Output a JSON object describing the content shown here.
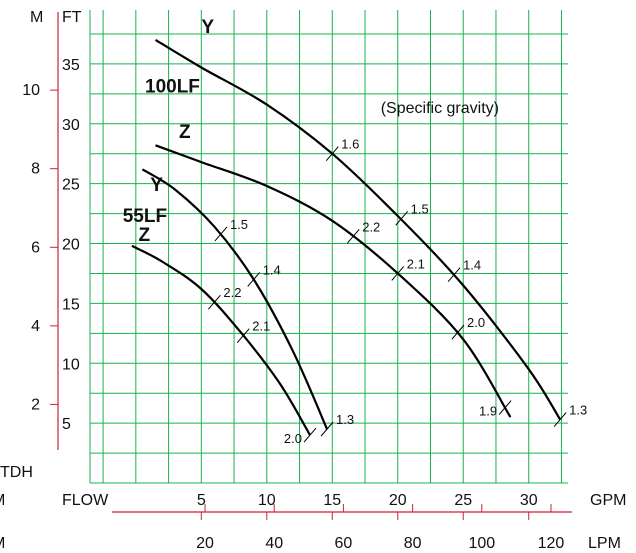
{
  "chart_data": {
    "type": "line",
    "title": "",
    "left_axes": {
      "m_unit": "M",
      "ft_unit": "FT",
      "label_below": "TDH",
      "m_ticks": [
        {
          "value": 2,
          "label": "2"
        },
        {
          "value": 4,
          "label": "4"
        },
        {
          "value": 6,
          "label": "6"
        },
        {
          "value": 8,
          "label": "8"
        },
        {
          "value": 10,
          "label": "10"
        }
      ],
      "ft_ticks": [
        {
          "value": 5,
          "label": "5"
        },
        {
          "value": 10,
          "label": "10"
        },
        {
          "value": 15,
          "label": "15"
        },
        {
          "value": 20,
          "label": "20"
        },
        {
          "value": 25,
          "label": "25"
        },
        {
          "value": 30,
          "label": "30"
        },
        {
          "value": 35,
          "label": "35"
        }
      ]
    },
    "bottom_axes": {
      "gpm_row_left": "M",
      "flow_label": "FLOW",
      "gpm_unit": "GPM",
      "gpm_ticks": [
        {
          "value": 5,
          "label": "5"
        },
        {
          "value": 10,
          "label": "10"
        },
        {
          "value": 15,
          "label": "15"
        },
        {
          "value": 20,
          "label": "20"
        },
        {
          "value": 25,
          "label": "25"
        },
        {
          "value": 30,
          "label": "30"
        }
      ],
      "lpm_row_left": "M",
      "lpm_unit": "LPM",
      "lpm_ticks": [
        {
          "value": 20,
          "label": "20"
        },
        {
          "value": 40,
          "label": "40"
        },
        {
          "value": 60,
          "label": "60"
        },
        {
          "value": 80,
          "label": "80"
        },
        {
          "value": 100,
          "label": "100"
        },
        {
          "value": 120,
          "label": "120"
        }
      ]
    },
    "xlim": [
      -3.5,
      33
    ],
    "ylim": [
      0,
      39.5
    ],
    "grid": true,
    "annotation": "(Specific gravity)",
    "series": [
      {
        "name": "Y",
        "group": "100LF",
        "x": [
          1.5,
          5,
          10,
          15,
          20,
          25,
          30,
          32.4
        ],
        "y": [
          37,
          34.7,
          31.6,
          27.5,
          22.3,
          16.5,
          9.5,
          5.3
        ]
      },
      {
        "name": "Z",
        "group": "100LF",
        "x": [
          1.5,
          5,
          10,
          15,
          20,
          25,
          28.6
        ],
        "y": [
          28.2,
          26.8,
          24.8,
          21.9,
          17.5,
          12,
          5.5
        ]
      },
      {
        "name": "Y",
        "group": "55LF",
        "x": [
          0.5,
          3,
          6,
          9,
          12,
          14.6
        ],
        "y": [
          26.2,
          24.5,
          21.4,
          17,
          11,
          4.5
        ]
      },
      {
        "name": "Z",
        "group": "55LF",
        "x": [
          -0.3,
          2,
          5,
          8,
          11,
          13.3
        ],
        "y": [
          19.8,
          18.5,
          16.2,
          12.6,
          8.3,
          4
        ]
      }
    ],
    "gravity_marks": [
      {
        "series": 0,
        "x": 15,
        "y": 27.5,
        "label": "1.6"
      },
      {
        "series": 0,
        "x": 20.3,
        "y": 22.1,
        "label": "1.5"
      },
      {
        "series": 0,
        "x": 24.3,
        "y": 17.4,
        "label": "1.4"
      },
      {
        "series": 0,
        "x": 32.4,
        "y": 5.3,
        "label": "1.3"
      },
      {
        "series": 1,
        "x": 16.6,
        "y": 20.6,
        "label": "2.2"
      },
      {
        "series": 1,
        "x": 20,
        "y": 17.5,
        "label": "2.1"
      },
      {
        "series": 1,
        "x": 24.6,
        "y": 12.6,
        "label": "2.0"
      },
      {
        "series": 1,
        "x": 28.2,
        "y": 6.3,
        "label": "1.9"
      },
      {
        "series": 2,
        "x": 6.5,
        "y": 20.8,
        "label": "1.5"
      },
      {
        "series": 2,
        "x": 9,
        "y": 17,
        "label": "1.4"
      },
      {
        "series": 2,
        "x": 14.6,
        "y": 4.5,
        "label": "1.3"
      },
      {
        "series": 3,
        "x": 6,
        "y": 15.1,
        "label": "2.2"
      },
      {
        "series": 3,
        "x": 8.2,
        "y": 12.3,
        "label": "2.1"
      },
      {
        "series": 3,
        "x": 13.3,
        "y": 4,
        "label": "2.0"
      }
    ],
    "curve_labels": [
      {
        "text": "Y",
        "x": 5,
        "y": 37.6
      },
      {
        "text": "100LF",
        "x": 0.7,
        "y": 32.6
      },
      {
        "text": "Z",
        "x": 3.3,
        "y": 28.8
      },
      {
        "text": "Y",
        "x": 1.1,
        "y": 24.4
      },
      {
        "text": "55LF",
        "x": -1.0,
        "y": 21.8
      },
      {
        "text": "Z",
        "x": 0.2,
        "y": 20.2
      }
    ],
    "colors": {
      "grid": "#19b24e",
      "axis": "#cc2233",
      "curve": "#000000"
    }
  }
}
